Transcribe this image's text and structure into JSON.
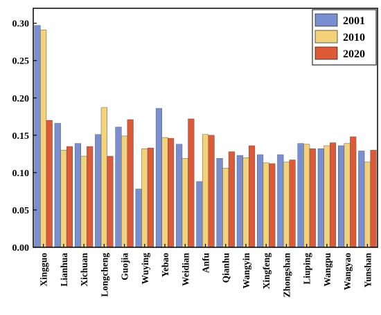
{
  "chart_data": {
    "type": "bar",
    "title": "",
    "xlabel": "",
    "ylabel": "",
    "ylim": [
      0,
      0.32
    ],
    "yticks": [
      "0.00",
      "0.05",
      "0.10",
      "0.15",
      "0.20",
      "0.25",
      "0.30"
    ],
    "yticks_values": [
      0,
      0.05,
      0.1,
      0.15,
      0.2,
      0.25,
      0.3
    ],
    "categories": [
      "Xingguo",
      "Lianhua",
      "Xichuan",
      "Longcheng",
      "Guojia",
      "Wuying",
      "Yebao",
      "Weidian",
      "Anfu",
      "Qianhu",
      "Wangyin",
      "Xingfeng",
      "Zhongshan",
      "Liuping",
      "Wangpu",
      "Wangyao",
      "Yunshan"
    ],
    "series": [
      {
        "name": "2001",
        "color": "#7a8fd0",
        "values": [
          0.297,
          0.166,
          0.139,
          0.151,
          0.161,
          0.078,
          0.186,
          0.138,
          0.088,
          0.119,
          0.123,
          0.124,
          0.124,
          0.139,
          0.132,
          0.136,
          0.129
        ]
      },
      {
        "name": "2010",
        "color": "#f2d27a",
        "values": [
          0.291,
          0.13,
          0.122,
          0.187,
          0.149,
          0.132,
          0.147,
          0.119,
          0.151,
          0.106,
          0.12,
          0.113,
          0.114,
          0.138,
          0.136,
          0.139,
          0.114
        ]
      },
      {
        "name": "2020",
        "color": "#dc5a37",
        "values": [
          0.17,
          0.135,
          0.135,
          0.122,
          0.171,
          0.133,
          0.146,
          0.172,
          0.15,
          0.128,
          0.136,
          0.112,
          0.117,
          0.132,
          0.14,
          0.148,
          0.13
        ]
      }
    ],
    "grid": false,
    "legend_position": "top-right"
  }
}
